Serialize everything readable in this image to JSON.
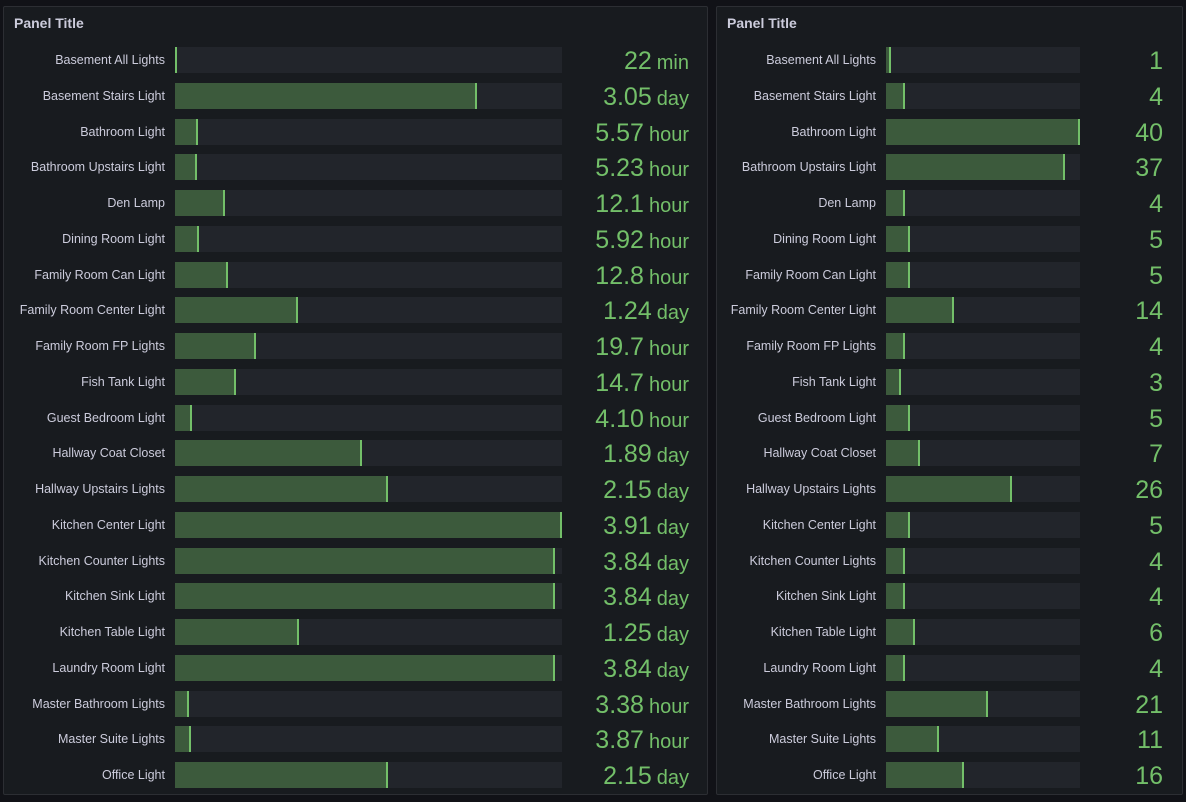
{
  "left_panel": {
    "title": "Panel Title"
  },
  "right_panel": {
    "title": "Panel Title"
  },
  "colors": {
    "background": "#111217",
    "panel": "#181b1f",
    "track": "#22252b",
    "fill": "#3c5a3c",
    "accent": "#73bf69"
  },
  "chart_data": [
    {
      "type": "bar",
      "orientation": "horizontal",
      "title": "Panel Title",
      "max_hours": 93.84,
      "rows": [
        {
          "label": "Basement All Lights",
          "value": "22",
          "unit": "min",
          "hours": 0.367
        },
        {
          "label": "Basement Stairs Light",
          "value": "3.05",
          "unit": "day",
          "hours": 73.2
        },
        {
          "label": "Bathroom Light",
          "value": "5.57",
          "unit": "hour",
          "hours": 5.57
        },
        {
          "label": "Bathroom Upstairs Light",
          "value": "5.23",
          "unit": "hour",
          "hours": 5.23
        },
        {
          "label": "Den Lamp",
          "value": "12.1",
          "unit": "hour",
          "hours": 12.1
        },
        {
          "label": "Dining Room Light",
          "value": "5.92",
          "unit": "hour",
          "hours": 5.92
        },
        {
          "label": "Family Room Can Light",
          "value": "12.8",
          "unit": "hour",
          "hours": 12.8
        },
        {
          "label": "Family Room Center Light",
          "value": "1.24",
          "unit": "day",
          "hours": 29.76
        },
        {
          "label": "Family Room FP Lights",
          "value": "19.7",
          "unit": "hour",
          "hours": 19.7
        },
        {
          "label": "Fish Tank Light",
          "value": "14.7",
          "unit": "hour",
          "hours": 14.7
        },
        {
          "label": "Guest Bedroom Light",
          "value": "4.10",
          "unit": "hour",
          "hours": 4.1
        },
        {
          "label": "Hallway Coat Closet",
          "value": "1.89",
          "unit": "day",
          "hours": 45.36
        },
        {
          "label": "Hallway Upstairs Lights",
          "value": "2.15",
          "unit": "day",
          "hours": 51.6
        },
        {
          "label": "Kitchen Center Light",
          "value": "3.91",
          "unit": "day",
          "hours": 93.84
        },
        {
          "label": "Kitchen Counter Lights",
          "value": "3.84",
          "unit": "day",
          "hours": 92.16
        },
        {
          "label": "Kitchen Sink Light",
          "value": "3.84",
          "unit": "day",
          "hours": 92.16
        },
        {
          "label": "Kitchen Table Light",
          "value": "1.25",
          "unit": "day",
          "hours": 30.0
        },
        {
          "label": "Laundry Room Light",
          "value": "3.84",
          "unit": "day",
          "hours": 92.16
        },
        {
          "label": "Master Bathroom Lights",
          "value": "3.38",
          "unit": "hour",
          "hours": 3.38
        },
        {
          "label": "Master Suite Lights",
          "value": "3.87",
          "unit": "hour",
          "hours": 3.87
        },
        {
          "label": "Office Light",
          "value": "2.15",
          "unit": "day",
          "hours": 51.6
        }
      ]
    },
    {
      "type": "bar",
      "orientation": "horizontal",
      "title": "Panel Title",
      "max": 40,
      "rows": [
        {
          "label": "Basement All Lights",
          "value": 1
        },
        {
          "label": "Basement Stairs Light",
          "value": 4
        },
        {
          "label": "Bathroom Light",
          "value": 40
        },
        {
          "label": "Bathroom Upstairs Light",
          "value": 37
        },
        {
          "label": "Den Lamp",
          "value": 4
        },
        {
          "label": "Dining Room Light",
          "value": 5
        },
        {
          "label": "Family Room Can Light",
          "value": 5
        },
        {
          "label": "Family Room Center Light",
          "value": 14
        },
        {
          "label": "Family Room FP Lights",
          "value": 4
        },
        {
          "label": "Fish Tank Light",
          "value": 3
        },
        {
          "label": "Guest Bedroom Light",
          "value": 5
        },
        {
          "label": "Hallway Coat Closet",
          "value": 7
        },
        {
          "label": "Hallway Upstairs Lights",
          "value": 26
        },
        {
          "label": "Kitchen Center Light",
          "value": 5
        },
        {
          "label": "Kitchen Counter Lights",
          "value": 4
        },
        {
          "label": "Kitchen Sink Light",
          "value": 4
        },
        {
          "label": "Kitchen Table Light",
          "value": 6
        },
        {
          "label": "Laundry Room Light",
          "value": 4
        },
        {
          "label": "Master Bathroom Lights",
          "value": 21
        },
        {
          "label": "Master Suite Lights",
          "value": 11
        },
        {
          "label": "Office Light",
          "value": 16
        }
      ]
    }
  ]
}
